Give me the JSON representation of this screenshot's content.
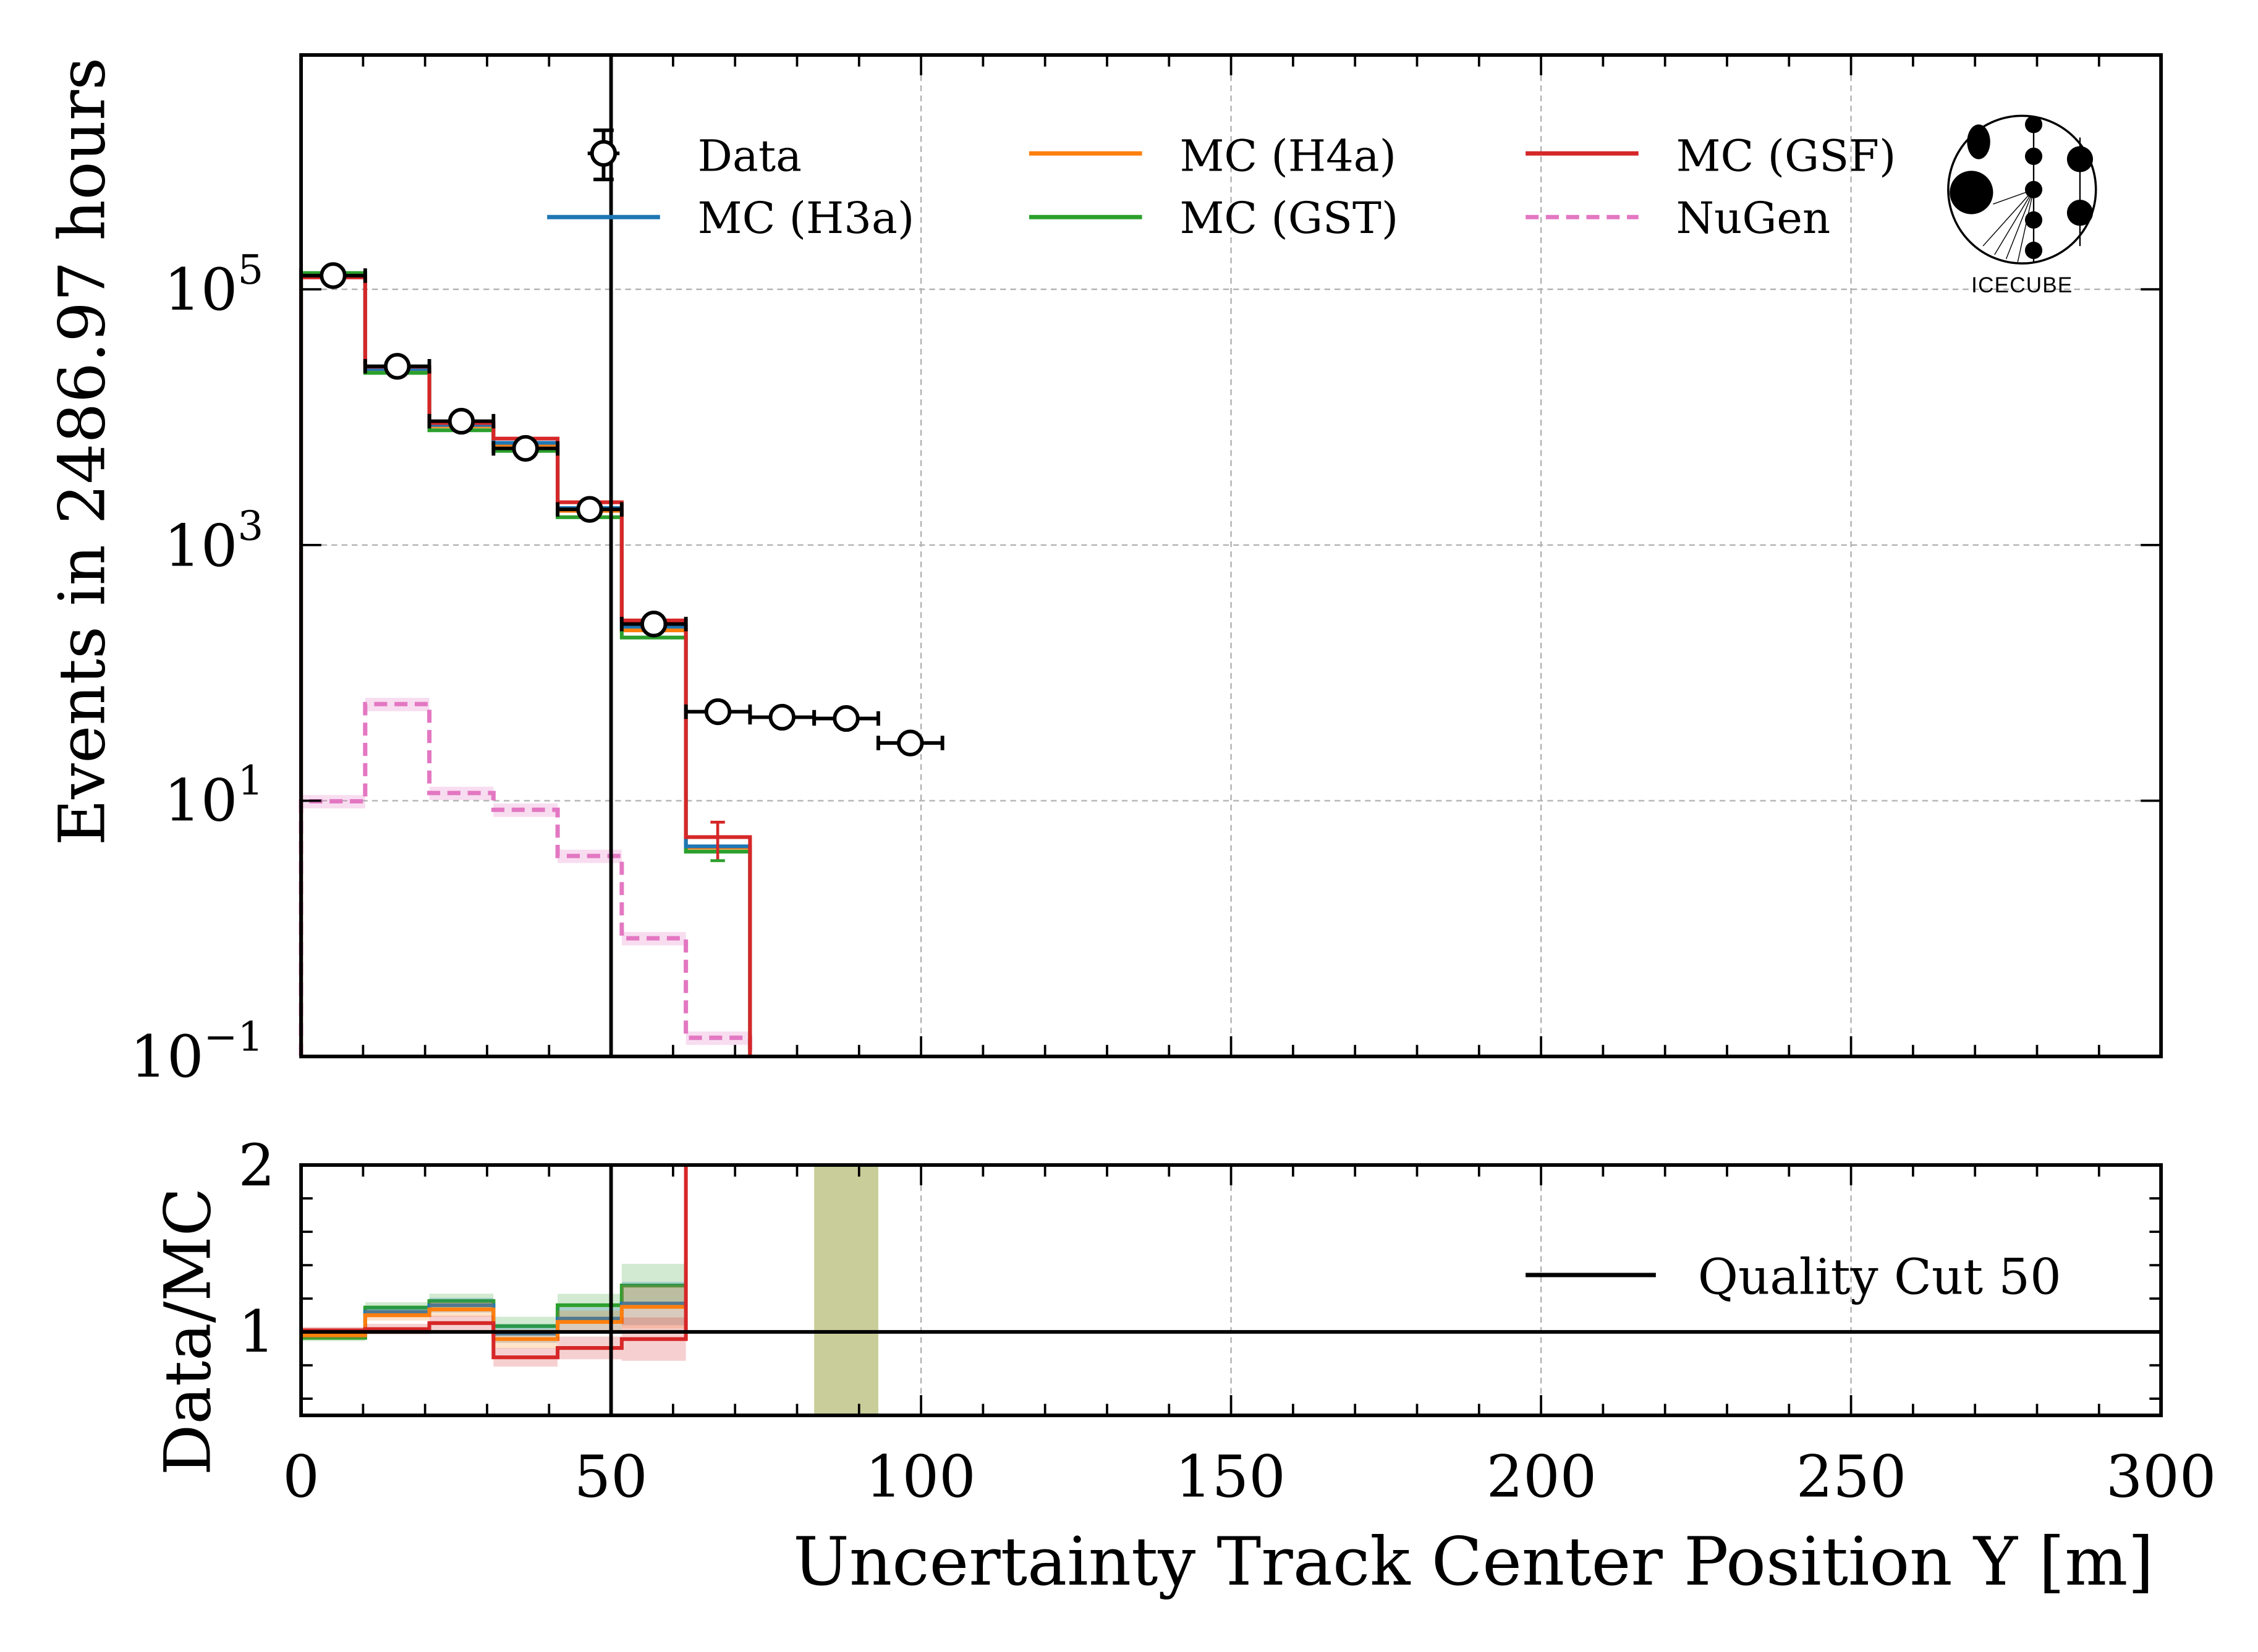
{
  "chart_data": [
    {
      "panel": "main",
      "type": "histogram",
      "title": "",
      "xlabel": "",
      "ylabel": "Events in 2486.97 hours",
      "yscale": "log",
      "xlim": [
        0,
        300
      ],
      "ylim": [
        0.1,
        6800000
      ],
      "grid": true,
      "ytick_labels": [
        {
          "value": 0.1,
          "base": "10",
          "exp": "−1"
        },
        {
          "value": 10,
          "base": "10",
          "exp": "1"
        },
        {
          "value": 1000,
          "base": "10",
          "exp": "3"
        },
        {
          "value": 100000,
          "base": "10",
          "exp": "5"
        }
      ],
      "bin_edges": [
        0,
        10.345,
        20.69,
        31.034,
        41.379,
        51.724,
        62.069,
        72.414,
        82.759,
        93.103,
        103.448
      ],
      "series": [
        {
          "name": "Data",
          "kind": "points",
          "color": "#000000",
          "values": [
            128000,
            25000,
            9300,
            5700,
            1900,
            241,
            49.7,
            45,
            44,
            28.3
          ]
        },
        {
          "name": "MC (H3a)",
          "kind": "step",
          "color": "#1f77b4",
          "values": [
            126000,
            23800,
            8700,
            6300,
            1950,
            230,
            4.4,
            null,
            null,
            null
          ]
        },
        {
          "name": "MC (H4a)",
          "kind": "step",
          "color": "#ff7f0e",
          "values": [
            127000,
            23600,
            8500,
            6100,
            1850,
            215,
            4.3,
            null,
            null,
            null
          ]
        },
        {
          "name": "MC (GST)",
          "kind": "step",
          "color": "#2ca02c",
          "values": [
            134000,
            22200,
            7900,
            5450,
            1650,
            189,
            4.0,
            null,
            null,
            null
          ]
        },
        {
          "name": "MC (GSF)",
          "kind": "step",
          "color": "#d62728",
          "values": [
            124000,
            24800,
            9000,
            6800,
            2160,
            257,
            5.2,
            null,
            null,
            null
          ]
        },
        {
          "name": "NuGen",
          "kind": "dashed-step",
          "color": "#e377c2",
          "values": [
            9.9,
            57,
            11.5,
            8.5,
            3.7,
            0.84,
            0.14,
            null,
            null,
            null
          ]
        }
      ],
      "vline": {
        "x": 50,
        "label": "Quality Cut 50",
        "color": "#000000"
      },
      "legend": {
        "placement": "top",
        "columns": 3,
        "entries": [
          "Data",
          "MC (H3a)",
          "MC (H4a)",
          "MC (GST)",
          "MC (GSF)",
          "NuGen"
        ]
      },
      "logo": {
        "text": "IceCube",
        "placement": "top-right"
      }
    },
    {
      "panel": "ratio",
      "type": "histogram",
      "xlabel": "Uncertainty Track Center Position Y [m]",
      "ylabel": "Data/MC",
      "xlim": [
        0,
        300
      ],
      "ylim": [
        0.5,
        2
      ],
      "xticks": [
        0,
        50,
        100,
        150,
        200,
        250,
        300
      ],
      "yticks": [
        1,
        2
      ],
      "grid": true,
      "bin_edges": [
        0,
        10.345,
        20.69,
        31.034,
        41.379,
        51.724,
        62.069
      ],
      "series": [
        {
          "name": "MC (H3a)",
          "color": "#1f77b4",
          "values": [
            0.985,
            1.12,
            1.16,
            0.99,
            1.08,
            1.17
          ]
        },
        {
          "name": "MC (H4a)",
          "color": "#ff7f0e",
          "values": [
            0.98,
            1.1,
            1.135,
            0.957,
            1.06,
            1.15
          ]
        },
        {
          "name": "MC (GST)",
          "color": "#2ca02c",
          "values": [
            0.965,
            1.146,
            1.185,
            1.035,
            1.16,
            1.278
          ]
        },
        {
          "name": "MC (GSF)",
          "color": "#d62728",
          "values": [
            1.01,
            1.017,
            1.053,
            0.848,
            0.904,
            0.957
          ]
        }
      ],
      "highlight_band": {
        "x_range": [
          82.759,
          93.103
        ],
        "color": "#bcc080"
      },
      "reference_line": 1,
      "vline": {
        "x": 50
      },
      "legend": {
        "placement": "right",
        "entries": [
          "Quality Cut 50"
        ]
      }
    }
  ],
  "legend_labels": {
    "data": "Data",
    "h3a": "MC (H3a)",
    "h4a": "MC (H4a)",
    "gst": "MC (GST)",
    "gsf": "MC (GSF)",
    "nugen": "NuGen",
    "cut": "Quality Cut 50"
  },
  "labels": {
    "main_ylabel": "Events in 2486.97 hours",
    "ratio_ylabel": "Data/MC",
    "xlabel": "Uncertainty Track Center Position Y [m]",
    "logo": "IceCube",
    "ratio_yticks": [
      "1",
      "2"
    ],
    "xticks": [
      "0",
      "50",
      "100",
      "150",
      "200",
      "250",
      "300"
    ],
    "main_yticks": [
      {
        "base": "10",
        "exp": "−1"
      },
      {
        "base": "10",
        "exp": "1"
      },
      {
        "base": "10",
        "exp": "3"
      },
      {
        "base": "10",
        "exp": "5"
      }
    ]
  }
}
